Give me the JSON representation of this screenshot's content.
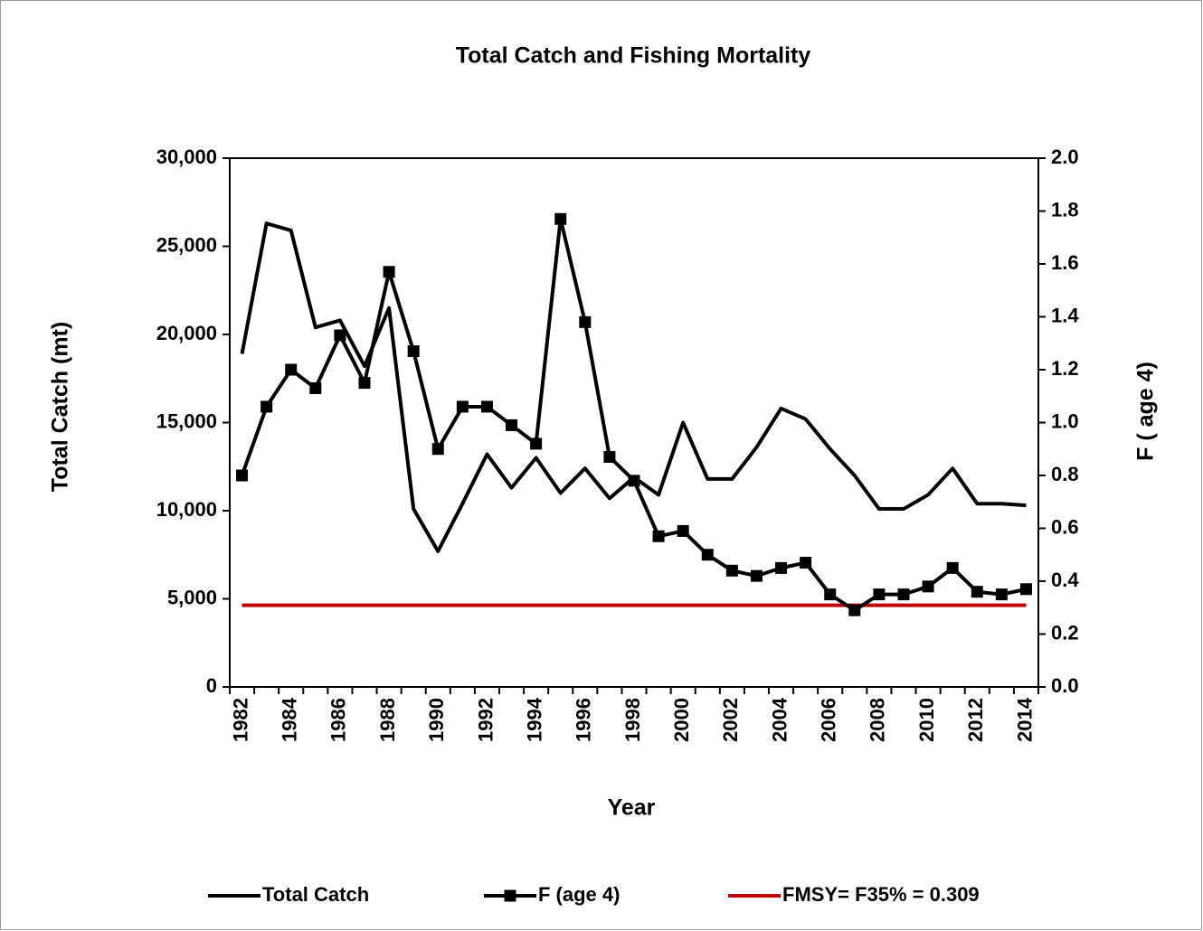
{
  "chart_data": {
    "type": "line",
    "title": "Total Catch and Fishing Mortality",
    "x_label": "Year",
    "y_label": "Total Catch (mt)",
    "y2_label": "F ( age 4)",
    "categories": [
      "1982",
      null,
      "1984",
      null,
      "1986",
      null,
      "1988",
      null,
      "1990",
      null,
      "1992",
      null,
      "1994",
      null,
      "1996",
      null,
      "1998",
      null,
      "2000",
      null,
      "2002",
      null,
      "2004",
      null,
      "2006",
      null,
      "2008",
      null,
      "2010",
      null,
      "2012",
      null,
      "2014"
    ],
    "series": [
      {
        "name": "Total Catch",
        "color": "#000000",
        "marker": false,
        "values": [
          18900,
          26300,
          25900,
          20400,
          20800,
          18200,
          21500,
          10100,
          7700,
          10400,
          13200,
          11300,
          13000,
          11000,
          12400,
          10700,
          11900,
          10900,
          15000,
          11800,
          11800,
          13600,
          15800,
          15200,
          13500,
          12000,
          10100,
          10100,
          10900,
          12400,
          10400,
          10400,
          10300
        ]
      },
      {
        "name": "F (age 4)",
        "color": "#000000",
        "axis": "y2",
        "marker": true,
        "values": [
          0.8,
          1.06,
          1.2,
          1.13,
          1.33,
          1.15,
          1.57,
          1.27,
          0.9,
          1.06,
          1.06,
          0.99,
          0.92,
          1.77,
          1.38,
          0.87,
          0.78,
          0.57,
          0.59,
          0.5,
          0.44,
          0.42,
          0.45,
          0.47,
          0.35,
          0.29,
          0.35,
          0.35,
          0.38,
          0.45,
          0.36,
          0.35,
          0.37
        ]
      },
      {
        "name": "FMSY= F35% = 0.309",
        "color": "#c00000",
        "axis": "y2",
        "marker": false,
        "values": [
          0.309,
          0.309,
          0.309,
          0.309,
          0.309,
          0.309,
          0.309,
          0.309,
          0.309,
          0.309,
          0.309,
          0.309,
          0.309,
          0.309,
          0.309,
          0.309,
          0.309,
          0.309,
          0.309,
          0.309,
          0.309,
          0.309,
          0.309,
          0.309,
          0.309,
          0.309,
          0.309,
          0.309,
          0.309,
          0.309,
          0.309,
          0.309,
          0.309
        ]
      }
    ],
    "ylim": [
      0,
      30000
    ],
    "yticks": [
      0,
      {
        "value": 5000,
        "label": "5,000"
      },
      {
        "value": 10000,
        "label": "10,000"
      },
      {
        "value": 15000,
        "label": "15,000"
      },
      {
        "value": 20000,
        "label": "20,000"
      },
      {
        "value": 25000,
        "label": "25,000"
      },
      {
        "value": 30000,
        "label": "30,000"
      }
    ],
    "y2lim": [
      0,
      2
    ],
    "y2ticks": [
      {
        "value": 0,
        "label": "0.0"
      },
      0.2,
      0.4,
      0.6,
      0.8,
      {
        "value": 1,
        "label": "1.0"
      },
      1.2,
      1.4,
      1.6,
      1.8,
      {
        "value": 2,
        "label": "2.0"
      }
    ],
    "grid": false,
    "legend": "bottom"
  }
}
